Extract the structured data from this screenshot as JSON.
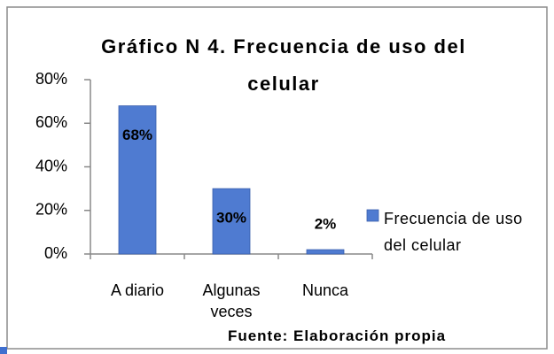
{
  "chart_data": {
    "type": "bar",
    "title": "Gráfico N 4. Frecuencia de uso del celular",
    "categories": [
      "A diario",
      "Algunas veces",
      "Nunca"
    ],
    "series": [
      {
        "name": "Frecuencia de uso del celular",
        "color": "#4f7bd1",
        "values": [
          68,
          30,
          2
        ],
        "value_labels": [
          "68%",
          "30%",
          "2%"
        ]
      }
    ],
    "ylim": [
      0,
      80
    ],
    "yticks": [
      {
        "value": 0,
        "label": "0%"
      },
      {
        "value": 20,
        "label": "20%"
      },
      {
        "value": 40,
        "label": "40%"
      },
      {
        "value": 60,
        "label": "60%"
      },
      {
        "value": 80,
        "label": "80%"
      }
    ],
    "legend": "right",
    "source": "Fuente: Elaboración propia"
  }
}
